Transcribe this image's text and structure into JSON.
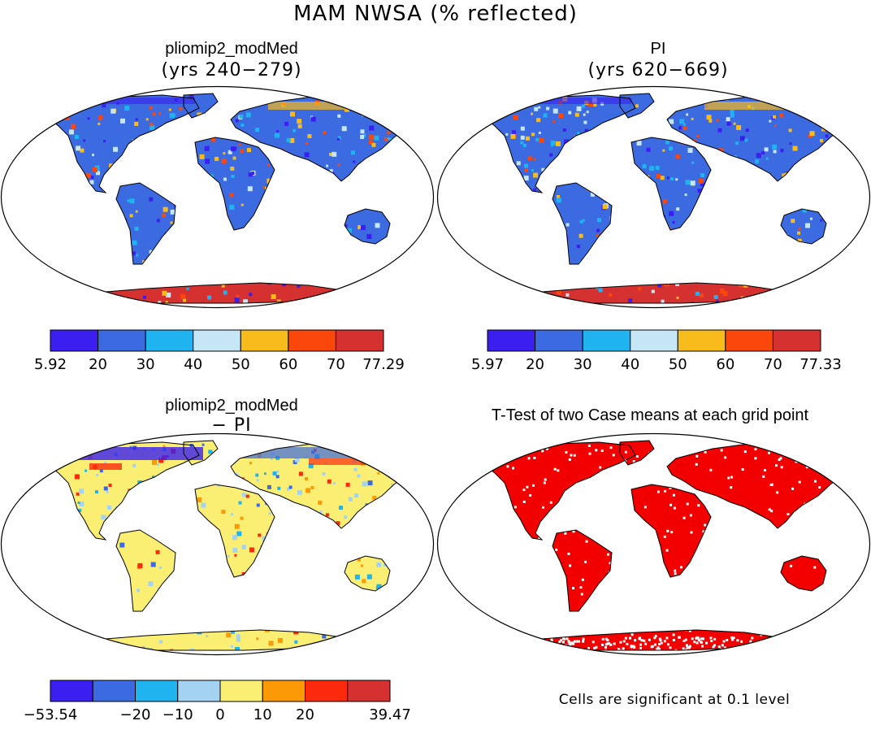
{
  "figure_title": "MAM NWSA (% reflected)",
  "panels": [
    {
      "id": "top-left",
      "title": "pliomip2_modMed",
      "subtitle": "(yrs 240−279)",
      "colorbar": {
        "labels": [
          "5.92",
          "20",
          "30",
          "40",
          "50",
          "60",
          "70",
          "77.29"
        ],
        "colors": [
          "#3a1ff0",
          "#3c6ae0",
          "#1fb3f0",
          "#c6e6f6",
          "#f7bb1b",
          "#fb470b",
          "#d53131"
        ]
      }
    },
    {
      "id": "top-right",
      "title": "PI",
      "subtitle": "(yrs 620−669)",
      "colorbar": {
        "labels": [
          "5.97",
          "20",
          "30",
          "40",
          "50",
          "60",
          "70",
          "77.33"
        ],
        "colors": [
          "#3a1ff0",
          "#3c6ae0",
          "#1fb3f0",
          "#c6e6f6",
          "#f7bb1b",
          "#fb470b",
          "#d53131"
        ]
      }
    },
    {
      "id": "bottom-left",
      "title": "pliomip2_modMed",
      "subtitle": "− PI",
      "colorbar": {
        "labels": [
          "−53.54",
          "−20",
          "−10",
          "0",
          "10",
          "20",
          "39.47"
        ],
        "colors": [
          "#3a1ff0",
          "#3c6ae0",
          "#1fb3f0",
          "#a4d3f2",
          "#fbef73",
          "#fb9a06",
          "#fb2a0c",
          "#d53131"
        ]
      }
    },
    {
      "id": "bottom-right",
      "title": "T-Test of two Case means at each grid point",
      "footnote": "Cells are significant at 0.1 level",
      "fill_color": "#f20000"
    }
  ],
  "map_colors": {
    "land_base_abs": "#3c6ae0",
    "antarctica_abs": "#d53131",
    "land_base_diff": "#fbef73",
    "antarctica_diff": "#fbef73",
    "ttest_land": "#f20000"
  }
}
